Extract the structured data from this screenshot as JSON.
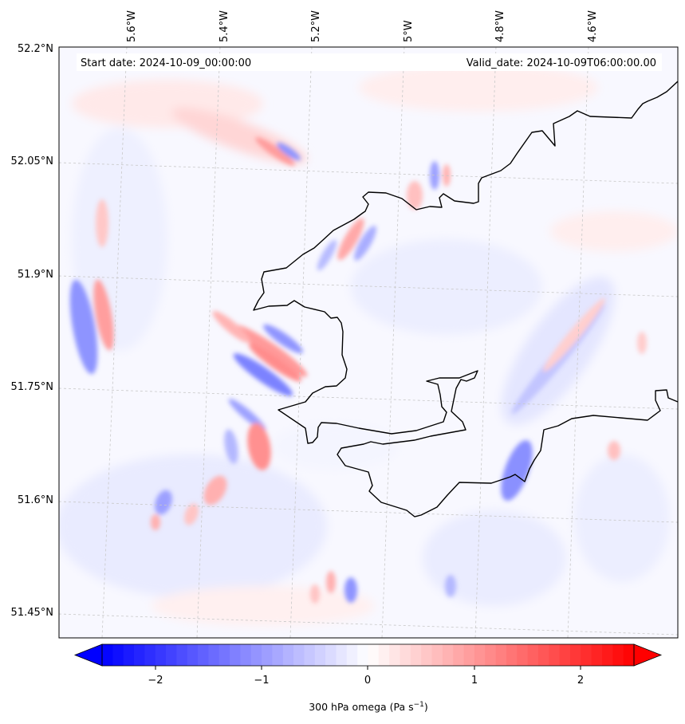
{
  "header": {
    "start_date": "Start date: 2024-10-09_00:00:00",
    "valid_date": "Valid_date: 2024-10-09T06:00:00.00"
  },
  "lon_labels": [
    "5.6°W",
    "5.4°W",
    "5.2°W",
    "5°W",
    "4.8°W",
    "4.6°W"
  ],
  "lat_labels": [
    "52.2°N",
    "52.05°N",
    "51.9°N",
    "51.75°N",
    "51.6°N",
    "51.45°N"
  ],
  "colorbar": {
    "label_main": "300 hPa omega (Pa s",
    "label_exp": "−1",
    "label_end": ")",
    "ticks": [
      "−2",
      "−1",
      "0",
      "1",
      "2"
    ],
    "min": -2.75,
    "max": 2.75,
    "low_color": "#0000ff",
    "mid_color": "#ffffff",
    "high_color": "#ff0000"
  },
  "colors": {
    "coastline": "#000000",
    "gridline": "#c8c8c8",
    "neg_shade": "#e6e8ff",
    "pos_shade": "#ffe8e8"
  }
}
